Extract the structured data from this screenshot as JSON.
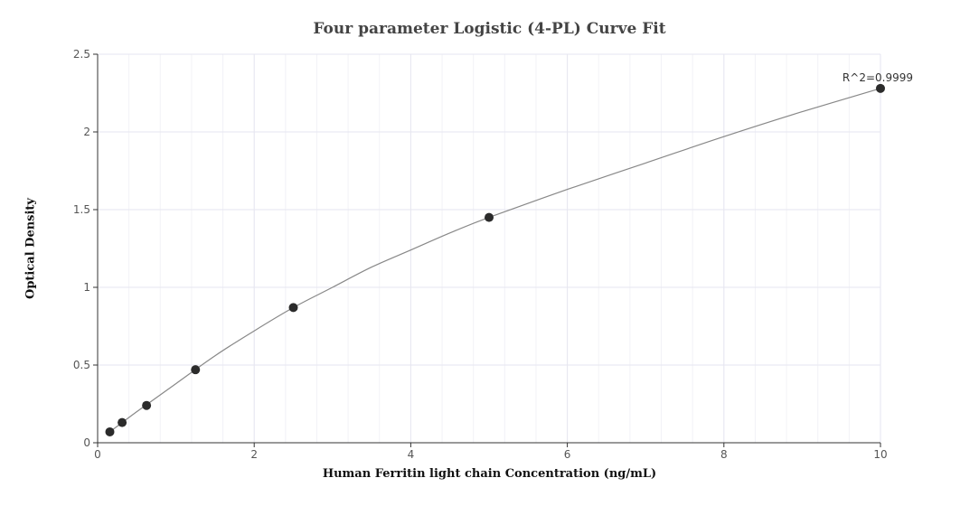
{
  "chart_data": {
    "type": "scatter",
    "title": "Four parameter Logistic (4-PL) Curve Fit",
    "xlabel": "Human Ferritin light chain Concentration (ng/mL)",
    "ylabel": "Optical Density",
    "xlim": [
      0,
      10
    ],
    "ylim": [
      0,
      2.5
    ],
    "x_ticks": [
      0,
      2,
      4,
      6,
      8,
      10
    ],
    "y_ticks": [
      0,
      0.5,
      1,
      1.5,
      2,
      2.5
    ],
    "x_tick_labels": [
      "0",
      "2",
      "4",
      "6",
      "8",
      "10"
    ],
    "y_tick_labels": [
      "0",
      "0.5",
      "1",
      "1.5",
      "2",
      "2.5"
    ],
    "grid": true,
    "series": [
      {
        "x": [
          0.156,
          0.313,
          0.625,
          1.25,
          2.5,
          5,
          10
        ],
        "y": [
          0.07,
          0.13,
          0.24,
          0.47,
          0.87,
          1.45,
          2.28
        ]
      }
    ],
    "fit_curve": {
      "model": "4PL",
      "x": [
        0.156,
        0.5,
        1,
        1.5,
        2,
        2.5,
        3,
        3.5,
        4,
        4.5,
        5,
        6,
        7,
        8,
        9,
        10
      ],
      "y": [
        0.07,
        0.2,
        0.38,
        0.56,
        0.72,
        0.87,
        1.0,
        1.13,
        1.24,
        1.35,
        1.45,
        1.63,
        1.8,
        1.97,
        2.13,
        2.28
      ]
    },
    "annotation": "R^2=0.9999",
    "colors": {
      "marker": "#2b2b2b",
      "curve": "#888888",
      "grid": "#e6e6f0",
      "axis": "#333333"
    }
  }
}
